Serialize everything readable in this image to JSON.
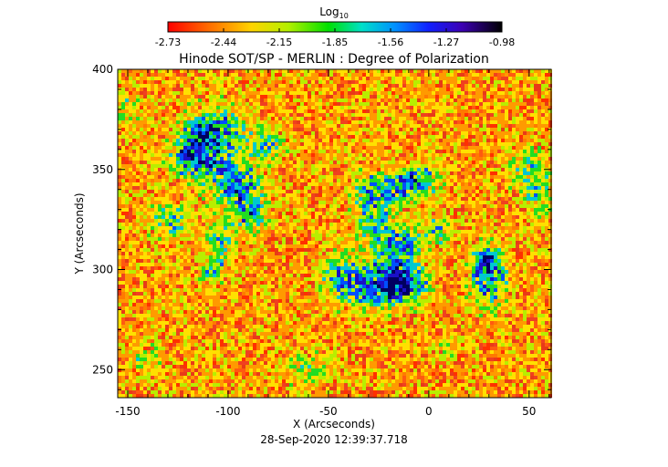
{
  "chart_data": {
    "type": "heatmap",
    "title": "Hinode SOT/SP - MERLIN : Degree of Polarization",
    "colorbar": {
      "label_base": "Log",
      "label_sub": "10",
      "ticks": [
        "-2.73",
        "-2.44",
        "-2.15",
        "-1.85",
        "-1.56",
        "-1.27",
        "-0.98"
      ],
      "range": [
        -2.73,
        -0.98
      ]
    },
    "xlabel": "X (Arcseconds)",
    "ylabel": "Y (Arcseconds)",
    "xlim": [
      -155,
      61
    ],
    "ylim": [
      236,
      400
    ],
    "xticks": [
      -150,
      -100,
      -50,
      0,
      50
    ],
    "yticks": [
      250,
      300,
      350,
      400
    ],
    "timestamp": "28-Sep-2020 12:39:37.718",
    "colors": {
      "low": "#ff2a00",
      "mid_low": "#ff8c00",
      "mid": "#ffee00",
      "mid_high": "#22dd22",
      "high": "#0000b0",
      "max": "#000000"
    }
  }
}
